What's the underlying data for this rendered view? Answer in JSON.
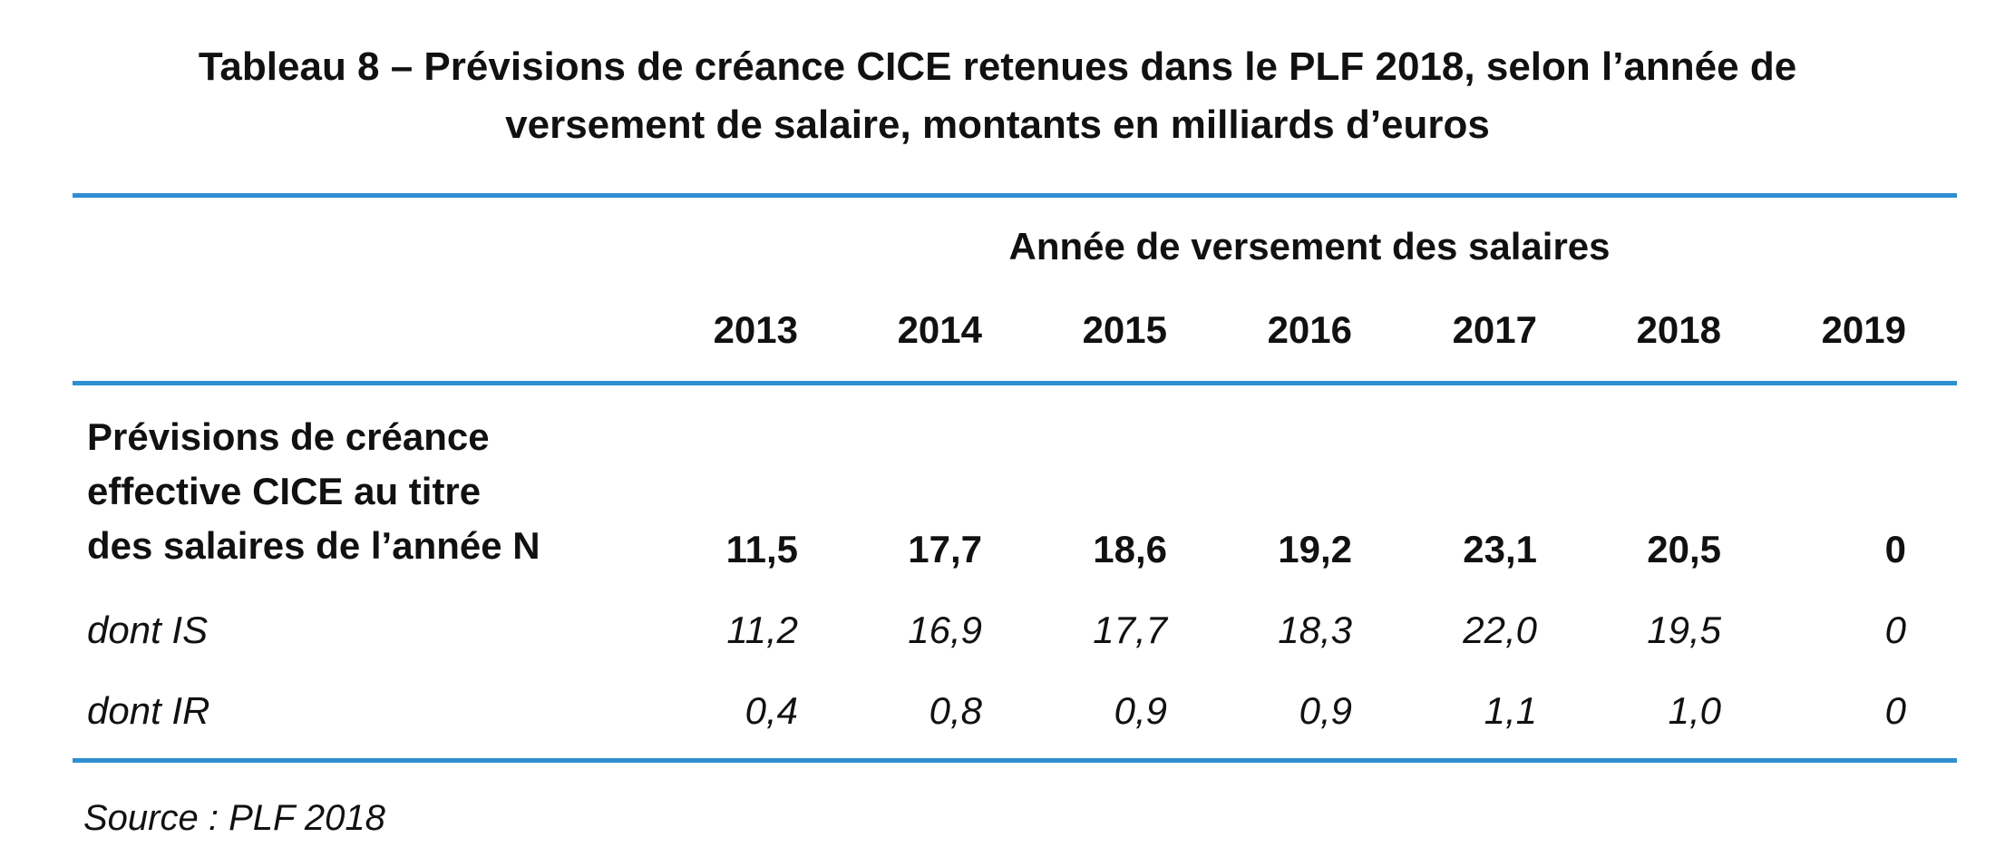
{
  "title": {
    "line1": "Tableau 8 – Prévisions de créance CICE retenues dans le PLF 2018, selon l’année de",
    "line2": "versement de salaire, montants en milliards d’euros"
  },
  "table": {
    "group_header": "Année de versement des salaires",
    "years": [
      "2013",
      "2014",
      "2015",
      "2016",
      "2017",
      "2018",
      "2019"
    ],
    "rows": [
      {
        "label_lines": [
          "Prévisions de créance",
          "effective CICE au titre",
          "des salaires de l’année N"
        ],
        "style": "bold",
        "values": [
          "11,5",
          "17,7",
          "18,6",
          "19,2",
          "23,1",
          "20,5",
          "0"
        ]
      },
      {
        "label_lines": [
          "dont IS"
        ],
        "style": "italic",
        "values": [
          "11,2",
          "16,9",
          "17,7",
          "18,3",
          "22,0",
          "19,5",
          "0"
        ]
      },
      {
        "label_lines": [
          "dont IR"
        ],
        "style": "italic",
        "values": [
          "0,4",
          "0,8",
          "0,9",
          "0,9",
          "1,1",
          "1,0",
          "0"
        ]
      }
    ]
  },
  "source": "Source : PLF 2018",
  "colors": {
    "rule": "#2f8fd1",
    "text": "#111111"
  }
}
